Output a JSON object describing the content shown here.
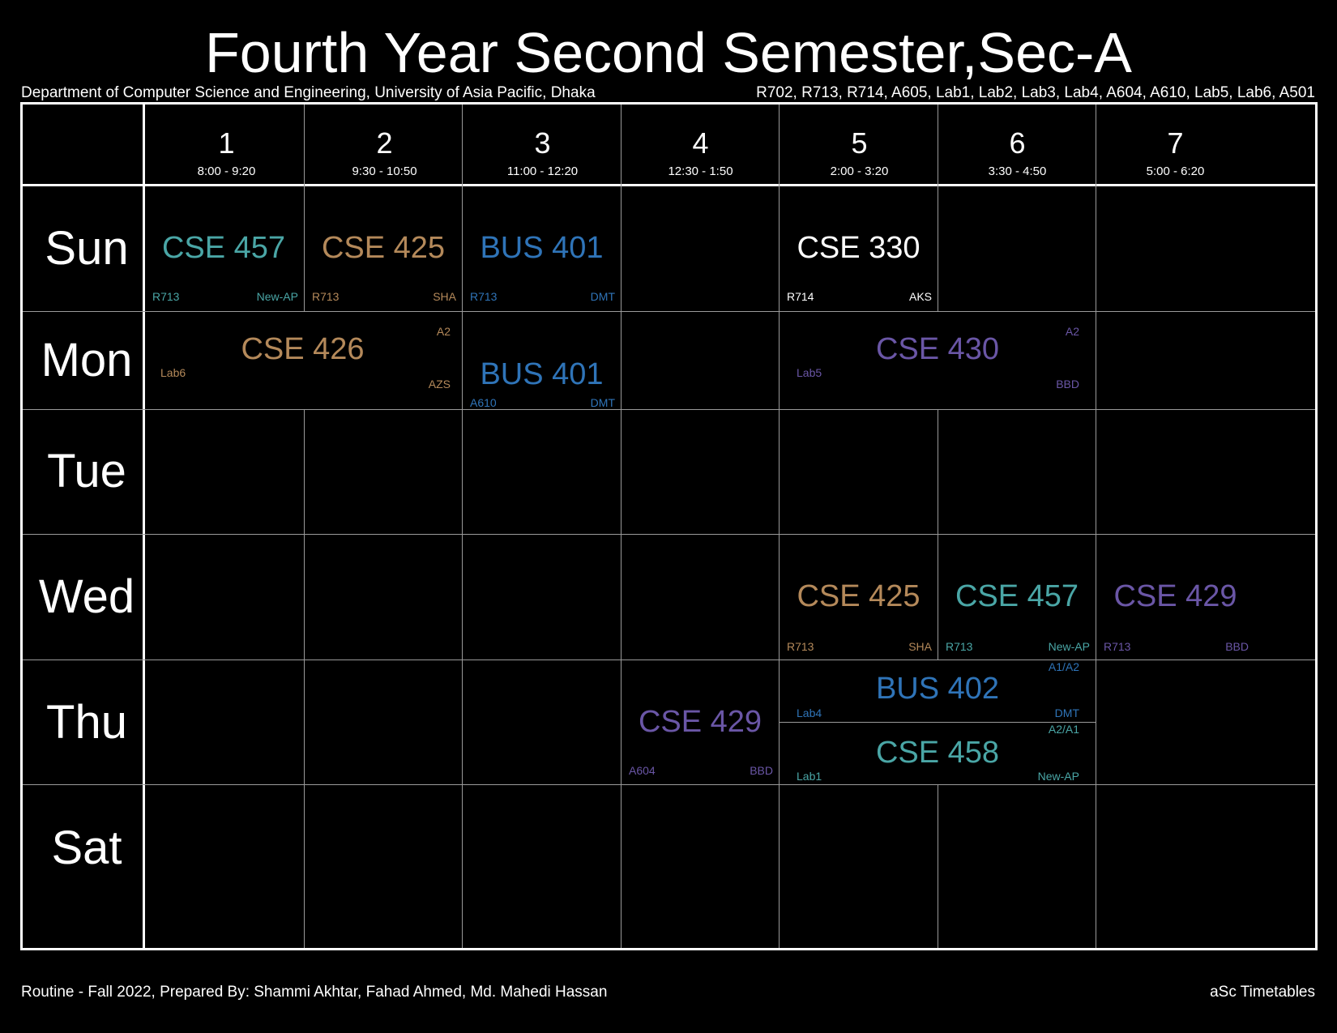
{
  "title": "Fourth Year Second Semester,Sec-A",
  "department": "Department of Computer Science and Engineering, University of Asia Pacific, Dhaka",
  "rooms": "R702, R713, R714, A605, Lab1, Lab2, Lab3, Lab4, A604, A610, Lab5, Lab6, A501",
  "footer_left": "Routine - Fall 2022, Prepared By: Shammi Akhtar, Fahad Ahmed, Md. Mahedi Hassan",
  "footer_right": "aSc Timetables",
  "periods": [
    {
      "num": "1",
      "time": "8:00 - 9:20"
    },
    {
      "num": "2",
      "time": "9:30 - 10:50"
    },
    {
      "num": "3",
      "time": "11:00 - 12:20"
    },
    {
      "num": "4",
      "time": "12:30 - 1:50"
    },
    {
      "num": "5",
      "time": "2:00 - 3:20"
    },
    {
      "num": "6",
      "time": "3:30 - 4:50"
    },
    {
      "num": "7",
      "time": "5:00 - 6:20"
    }
  ],
  "days": [
    "Sun",
    "Mon",
    "Tue",
    "Wed",
    "Thu",
    "Sat"
  ],
  "colors": {
    "teal": "#4aa6a6",
    "tan": "#b4895a",
    "blue": "#2f74b8",
    "white": "#ffffff",
    "purple": "#6a56a6"
  },
  "classes": [
    {
      "subject": "CSE 457",
      "room": "R713",
      "teacher": "New-AP",
      "group": "",
      "color": "teal"
    },
    {
      "subject": "CSE 425",
      "room": "R713",
      "teacher": "SHA",
      "group": "",
      "color": "tan"
    },
    {
      "subject": "BUS 401",
      "room": "R713",
      "teacher": "DMT",
      "group": "",
      "color": "blue"
    },
    {
      "subject": "CSE 330",
      "room": "R714",
      "teacher": "AKS",
      "group": "",
      "color": "white"
    },
    {
      "subject": "CSE 426",
      "room": "Lab6",
      "teacher": "AZS",
      "group": "A2",
      "color": "tan"
    },
    {
      "subject": "BUS 401",
      "room": "A610",
      "teacher": "DMT",
      "group": "",
      "color": "blue"
    },
    {
      "subject": "CSE 430",
      "room": "Lab5",
      "teacher": "BBD",
      "group": "A2",
      "color": "purple"
    },
    {
      "subject": "CSE 425",
      "room": "R713",
      "teacher": "SHA",
      "group": "",
      "color": "tan"
    },
    {
      "subject": "CSE 457",
      "room": "R713",
      "teacher": "New-AP",
      "group": "",
      "color": "teal"
    },
    {
      "subject": "CSE 429",
      "room": "R713",
      "teacher": "BBD",
      "group": "",
      "color": "purple"
    },
    {
      "subject": "CSE 429",
      "room": "A604",
      "teacher": "BBD",
      "group": "",
      "color": "purple"
    },
    {
      "subject": "BUS 402",
      "room": "Lab4",
      "teacher": "DMT",
      "group": "A1/A2",
      "color": "blue"
    },
    {
      "subject": "CSE 458",
      "room": "Lab1",
      "teacher": "New-AP",
      "group": "A2/A1",
      "color": "teal"
    }
  ]
}
